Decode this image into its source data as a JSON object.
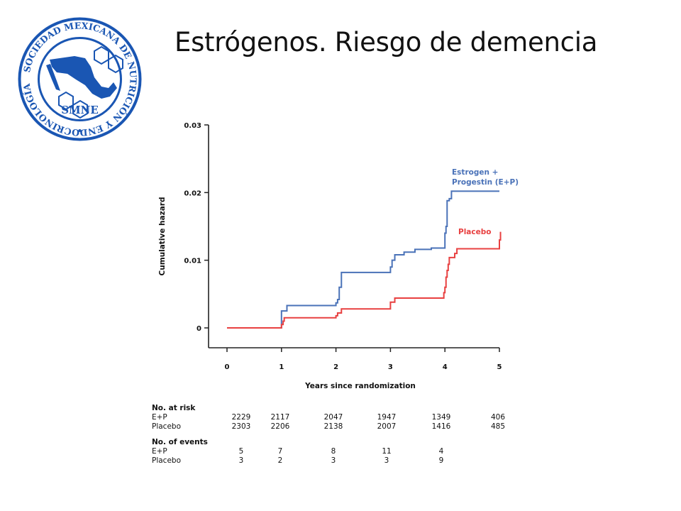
{
  "slide": {
    "title": "Estrógenos. Riesgo de demencia"
  },
  "logo": {
    "ring_text": "SOCIEDAD MEXICANA DE NUTRICIÓN Y ENDOCRINOLOGÍA",
    "acronym": "SMNE",
    "color": "#1a56b3"
  },
  "chart_data": {
    "type": "line",
    "title": "",
    "xlabel": "Years since randomization",
    "ylabel": "Cumulative hazard",
    "xlim": [
      0,
      5
    ],
    "ylim": [
      0,
      0.03
    ],
    "x_ticks": [
      "0",
      "1",
      "2",
      "3",
      "4",
      "5"
    ],
    "y_ticks": [
      "0",
      "0.01",
      "0.02",
      "0.03"
    ],
    "grid": false,
    "series": [
      {
        "name": "Estrogen + Progestin (E+P)",
        "name_lines": [
          "Estrogen +",
          "Progestin (E+P)"
        ],
        "color": "#4a72b8",
        "step": true,
        "points": [
          [
            0,
            0
          ],
          [
            1.0,
            0.0025
          ],
          [
            1.1,
            0.0033
          ],
          [
            2.0,
            0.0037
          ],
          [
            2.03,
            0.0042
          ],
          [
            2.06,
            0.006
          ],
          [
            2.1,
            0.0082
          ],
          [
            3.0,
            0.009
          ],
          [
            3.03,
            0.01
          ],
          [
            3.08,
            0.0108
          ],
          [
            3.25,
            0.0112
          ],
          [
            3.45,
            0.0116
          ],
          [
            3.75,
            0.0118
          ],
          [
            4.0,
            0.014
          ],
          [
            4.02,
            0.015
          ],
          [
            4.04,
            0.0188
          ],
          [
            4.08,
            0.0191
          ],
          [
            4.12,
            0.0202
          ],
          [
            5.0,
            0.0202
          ]
        ]
      },
      {
        "name": "Placebo",
        "name_lines": [
          "Placebo"
        ],
        "color": "#e84040",
        "step": true,
        "points": [
          [
            0,
            0
          ],
          [
            1.0,
            0.0005
          ],
          [
            1.03,
            0.001
          ],
          [
            1.05,
            0.0015
          ],
          [
            2.0,
            0.0018
          ],
          [
            2.03,
            0.0022
          ],
          [
            2.1,
            0.0028
          ],
          [
            2.6,
            0.0028
          ],
          [
            3.0,
            0.0038
          ],
          [
            3.08,
            0.0044
          ],
          [
            3.95,
            0.0044
          ],
          [
            3.98,
            0.0052
          ],
          [
            4.0,
            0.006
          ],
          [
            4.02,
            0.0075
          ],
          [
            4.04,
            0.0085
          ],
          [
            4.06,
            0.0094
          ],
          [
            4.08,
            0.0104
          ],
          [
            4.18,
            0.011
          ],
          [
            4.22,
            0.0117
          ],
          [
            5.0,
            0.013
          ],
          [
            5.02,
            0.0142
          ]
        ]
      }
    ]
  },
  "table": {
    "at_risk_heading": "No. at risk",
    "events_heading": "No. of events",
    "at_risk": [
      {
        "label": "E+P",
        "values": [
          "2229",
          "2117",
          "2047",
          "1947",
          "1349",
          "406"
        ]
      },
      {
        "label": "Placebo",
        "values": [
          "2303",
          "2206",
          "2138",
          "2007",
          "1416",
          "485"
        ]
      }
    ],
    "events": [
      {
        "label": "E+P",
        "values": [
          "5",
          "7",
          "8",
          "11",
          "4"
        ]
      },
      {
        "label": "Placebo",
        "values": [
          "3",
          "2",
          "3",
          "3",
          "9"
        ]
      }
    ]
  }
}
